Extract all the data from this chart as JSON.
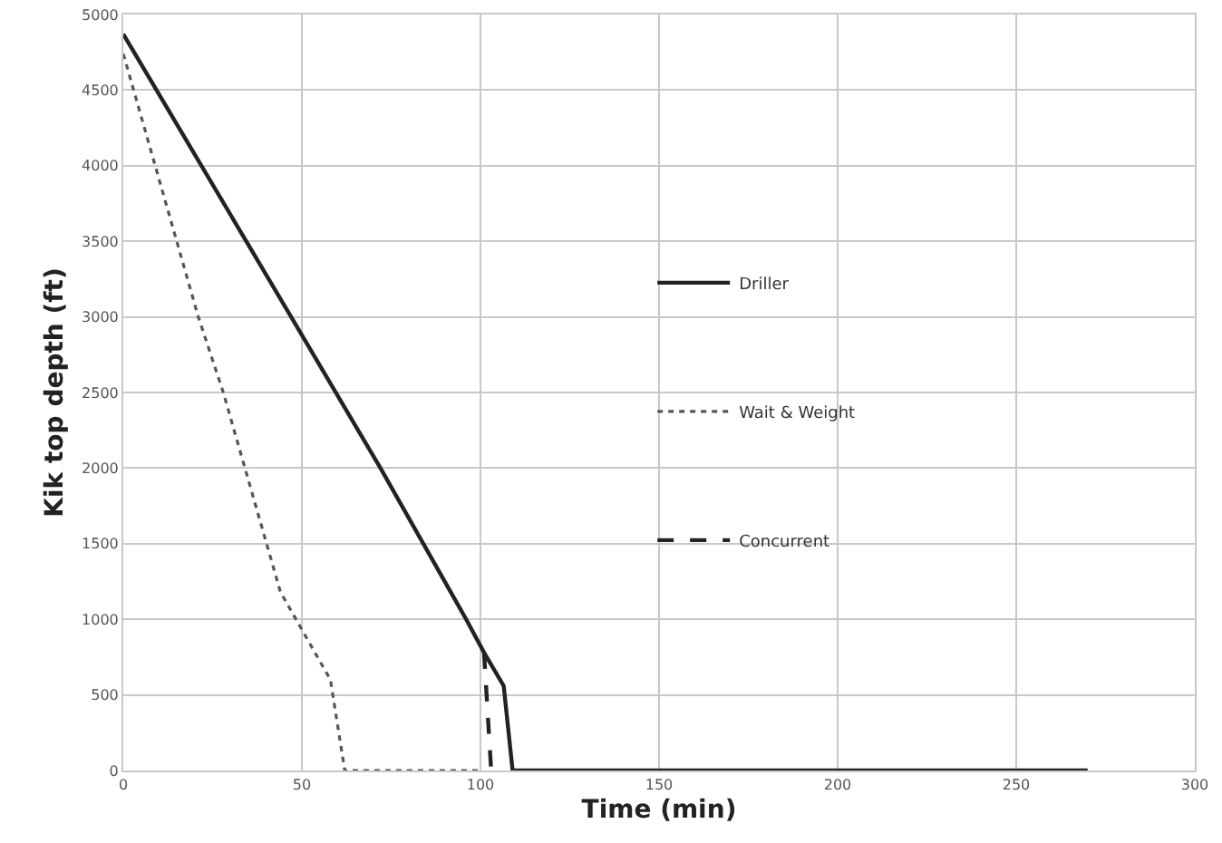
{
  "chart_data": {
    "type": "line",
    "xlabel": "Time (min)",
    "ylabel": "Kik top depth (ft)",
    "xlim": [
      0,
      300
    ],
    "xticks": [
      0,
      50,
      100,
      150,
      200,
      250,
      300
    ],
    "ylim": [
      0,
      5000
    ],
    "yticks": [
      0,
      500,
      1000,
      1500,
      2000,
      2500,
      3000,
      3500,
      4000,
      4500,
      5000
    ],
    "grid": true,
    "legend": "right",
    "marker": "none",
    "series": [
      {
        "name": "Driller",
        "color": "#222222",
        "line_style": "solid",
        "x": [
          0,
          47,
          72,
          96,
          101,
          106.5,
          109,
          270
        ],
        "values": [
          4870,
          3000,
          2000,
          1000,
          780,
          560,
          0,
          0
        ]
      },
      {
        "name": "Wait & Weight",
        "color": "#555555",
        "line_style": "dotted",
        "x": [
          0,
          21,
          28,
          44,
          58,
          62,
          100
        ],
        "values": [
          4740,
          3000,
          2500,
          1180,
          600,
          0,
          0
        ]
      },
      {
        "name": "Concurrent",
        "color": "#222222",
        "line_style": "dashed",
        "x": [
          101,
          103
        ],
        "values": [
          780,
          0
        ]
      }
    ]
  }
}
